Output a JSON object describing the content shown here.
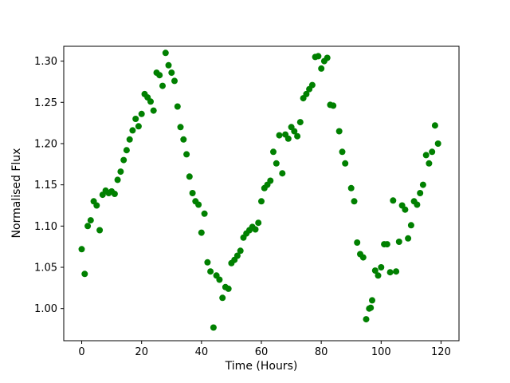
{
  "chart_data": {
    "type": "scatter",
    "title": "",
    "xlabel": "Time (Hours)",
    "ylabel": "Normalised Flux",
    "xlim": [
      -6,
      126
    ],
    "ylim": [
      0.961,
      1.318
    ],
    "xticks": [
      0,
      20,
      40,
      60,
      80,
      100,
      120
    ],
    "xtick_labels": [
      "0",
      "20",
      "40",
      "60",
      "80",
      "100",
      "120"
    ],
    "yticks": [
      1.0,
      1.05,
      1.1,
      1.15,
      1.2,
      1.25,
      1.3
    ],
    "ytick_labels": [
      "1.00",
      "1.05",
      "1.10",
      "1.15",
      "1.20",
      "1.25",
      "1.30"
    ],
    "grid": false,
    "legend": "none",
    "marker_color": "#008000",
    "marker_radius": 4,
    "points": [
      [
        0,
        1.072
      ],
      [
        1,
        1.042
      ],
      [
        2,
        1.1
      ],
      [
        3,
        1.107
      ],
      [
        4,
        1.13
      ],
      [
        5,
        1.125
      ],
      [
        6,
        1.095
      ],
      [
        7,
        1.138
      ],
      [
        8,
        1.143
      ],
      [
        9,
        1.14
      ],
      [
        10,
        1.142
      ],
      [
        11,
        1.139
      ],
      [
        12,
        1.156
      ],
      [
        13,
        1.166
      ],
      [
        14,
        1.18
      ],
      [
        15,
        1.192
      ],
      [
        16,
        1.205
      ],
      [
        17,
        1.216
      ],
      [
        18,
        1.23
      ],
      [
        19,
        1.221
      ],
      [
        20,
        1.236
      ],
      [
        21,
        1.26
      ],
      [
        22,
        1.256
      ],
      [
        23,
        1.251
      ],
      [
        24,
        1.24
      ],
      [
        25,
        1.286
      ],
      [
        26,
        1.283
      ],
      [
        27,
        1.27
      ],
      [
        28,
        1.31
      ],
      [
        29,
        1.295
      ],
      [
        30,
        1.286
      ],
      [
        31,
        1.276
      ],
      [
        32,
        1.245
      ],
      [
        33,
        1.22
      ],
      [
        34,
        1.205
      ],
      [
        35,
        1.187
      ],
      [
        36,
        1.16
      ],
      [
        37,
        1.14
      ],
      [
        38,
        1.13
      ],
      [
        39,
        1.126
      ],
      [
        40,
        1.092
      ],
      [
        41,
        1.115
      ],
      [
        42,
        1.056
      ],
      [
        43,
        1.045
      ],
      [
        44,
        0.977
      ],
      [
        45,
        1.04
      ],
      [
        46,
        1.035
      ],
      [
        47,
        1.013
      ],
      [
        48,
        1.026
      ],
      [
        49,
        1.024
      ],
      [
        50,
        1.055
      ],
      [
        51,
        1.059
      ],
      [
        52,
        1.064
      ],
      [
        53,
        1.07
      ],
      [
        54,
        1.086
      ],
      [
        55,
        1.091
      ],
      [
        56,
        1.095
      ],
      [
        57,
        1.099
      ],
      [
        58,
        1.096
      ],
      [
        59,
        1.104
      ],
      [
        60,
        1.13
      ],
      [
        61,
        1.146
      ],
      [
        62,
        1.15
      ],
      [
        63,
        1.155
      ],
      [
        64,
        1.19
      ],
      [
        65,
        1.176
      ],
      [
        66,
        1.21
      ],
      [
        67,
        1.164
      ],
      [
        68,
        1.211
      ],
      [
        69,
        1.206
      ],
      [
        70,
        1.22
      ],
      [
        71,
        1.215
      ],
      [
        72,
        1.209
      ],
      [
        73,
        1.226
      ],
      [
        74,
        1.255
      ],
      [
        75,
        1.26
      ],
      [
        76,
        1.266
      ],
      [
        77,
        1.271
      ],
      [
        78,
        1.305
      ],
      [
        79,
        1.306
      ],
      [
        80,
        1.291
      ],
      [
        81,
        1.3
      ],
      [
        82,
        1.304
      ],
      [
        83,
        1.247
      ],
      [
        84,
        1.246
      ],
      [
        86,
        1.215
      ],
      [
        87,
        1.19
      ],
      [
        88,
        1.176
      ],
      [
        90,
        1.146
      ],
      [
        91,
        1.13
      ],
      [
        92,
        1.08
      ],
      [
        93,
        1.066
      ],
      [
        94,
        1.062
      ],
      [
        95,
        0.987
      ],
      [
        96,
        1.0
      ],
      [
        96.5,
        1.001
      ],
      [
        97,
        1.01
      ],
      [
        98,
        1.046
      ],
      [
        99,
        1.04
      ],
      [
        100,
        1.05
      ],
      [
        101,
        1.078
      ],
      [
        102,
        1.078
      ],
      [
        103,
        1.044
      ],
      [
        104,
        1.131
      ],
      [
        105,
        1.045
      ],
      [
        106,
        1.081
      ],
      [
        107,
        1.125
      ],
      [
        108,
        1.12
      ],
      [
        109,
        1.085
      ],
      [
        110,
        1.101
      ],
      [
        111,
        1.13
      ],
      [
        112,
        1.126
      ],
      [
        113,
        1.14
      ],
      [
        114,
        1.15
      ],
      [
        115,
        1.186
      ],
      [
        116,
        1.176
      ],
      [
        117,
        1.19
      ],
      [
        118,
        1.222
      ],
      [
        119,
        1.2
      ]
    ]
  }
}
